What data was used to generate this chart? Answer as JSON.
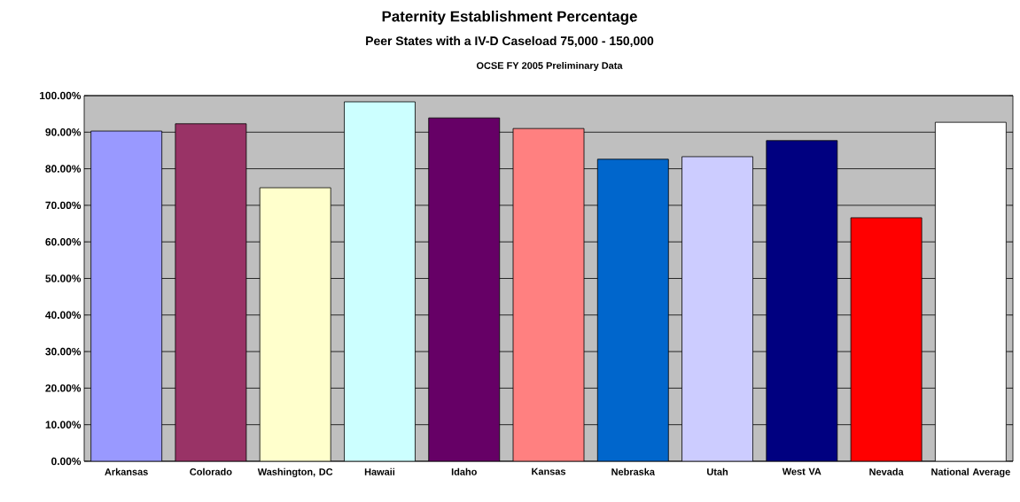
{
  "chart_data": {
    "type": "bar",
    "title": "Paternity Establishment Percentage",
    "subtitle": "Peer States with a IV-D Caseload 75,000 - 150,000",
    "annotations": [
      "OCSE FY 2005 Preliminary Data"
    ],
    "categories": [
      "Arkansas",
      "Colorado",
      "Washington, DC",
      "Hawaii",
      "Idaho",
      "Kansas",
      "Nebraska",
      "Utah",
      "West VA",
      "Nevada",
      "National Average"
    ],
    "values": [
      90.3,
      92.3,
      74.8,
      98.3,
      93.9,
      91.0,
      82.6,
      83.3,
      87.7,
      66.6,
      92.7
    ],
    "colors": [
      "#9999ff",
      "#993366",
      "#ffffcc",
      "#ccffff",
      "#660066",
      "#ff8080",
      "#0066cc",
      "#ccccff",
      "#000080",
      "#ff0000",
      "#ffffff"
    ],
    "ylim": [
      0,
      100
    ],
    "yticks": [
      {
        "value": 0,
        "label": "0.00%"
      },
      {
        "value": 10,
        "label": "10.00%"
      },
      {
        "value": 20,
        "label": "20.00%"
      },
      {
        "value": 30,
        "label": "30.00%"
      },
      {
        "value": 40,
        "label": "40.00%"
      },
      {
        "value": 50,
        "label": "50.00%"
      },
      {
        "value": 60,
        "label": "60.00%"
      },
      {
        "value": 70,
        "label": "70.00%"
      },
      {
        "value": 80,
        "label": "80.00%"
      },
      {
        "value": 90,
        "label": "90.00%"
      },
      {
        "value": 100,
        "label": "100.00%"
      }
    ],
    "grid": "y"
  }
}
